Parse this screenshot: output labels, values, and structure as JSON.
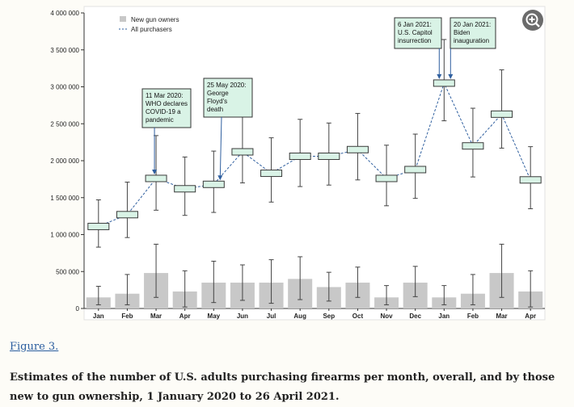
{
  "figure": {
    "link_label": "Figure 3.",
    "caption": "Estimates of the number of U.S. adults purchasing firearms per month, overall, and by those new to gun ownership, 1 January 2020 to 26 April 2021."
  },
  "zoom_icon": "magnify-plus-icon",
  "colors": {
    "bar": "#c8c8c8",
    "box_fill": "#d9f3e6",
    "box_stroke": "#3a3a3a",
    "line": "#2f5f9f",
    "annotation_fill": "#d9f3e6"
  },
  "chart_data": {
    "type": "bar",
    "categories": [
      "Jan",
      "Feb",
      "Mar",
      "Apr",
      "May",
      "Jun",
      "Jul",
      "Aug",
      "Sep",
      "Oct",
      "Nov",
      "Dec",
      "Jan",
      "Feb",
      "Mar",
      "Apr"
    ],
    "ylim": [
      0,
      4000000
    ],
    "yticks": [
      0,
      500000,
      1000000,
      1500000,
      2000000,
      2500000,
      3000000,
      3500000,
      4000000
    ],
    "ytick_labels": [
      "0",
      "500 000",
      "1 000 000",
      "1 500 000",
      "2 000 000",
      "2 500 000",
      "3 000 000",
      "3 500 000",
      "4 000 000"
    ],
    "legend": [
      "New gun owners",
      "All purchasers"
    ],
    "legend_position": "top-left",
    "grid": false,
    "series": [
      {
        "name": "New gun owners",
        "type": "bar",
        "values": [
          150000,
          200000,
          480000,
          230000,
          350000,
          350000,
          350000,
          400000,
          290000,
          350000,
          150000,
          350000,
          150000,
          200000,
          480000,
          230000
        ],
        "lower": [
          50000,
          50000,
          150000,
          20000,
          80000,
          110000,
          70000,
          120000,
          100000,
          150000,
          50000,
          160000,
          50000,
          50000,
          150000,
          20000
        ],
        "upper": [
          300000,
          460000,
          870000,
          510000,
          640000,
          590000,
          660000,
          700000,
          490000,
          560000,
          310000,
          570000,
          310000,
          460000,
          870000,
          510000
        ]
      },
      {
        "name": "All purchasers",
        "type": "line",
        "values": [
          1110000,
          1270000,
          1760000,
          1620000,
          1680000,
          2120000,
          1830000,
          2060000,
          2060000,
          2150000,
          1760000,
          1880000,
          3050000,
          2200000,
          2630000,
          1740000
        ],
        "lower": [
          830000,
          960000,
          1330000,
          1260000,
          1300000,
          1700000,
          1440000,
          1650000,
          1670000,
          1740000,
          1390000,
          1490000,
          2540000,
          1780000,
          2170000,
          1350000
        ],
        "upper": [
          1470000,
          1710000,
          2340000,
          2050000,
          2130000,
          2620000,
          2310000,
          2560000,
          2510000,
          2640000,
          2210000,
          2360000,
          3640000,
          2710000,
          3230000,
          2190000
        ]
      }
    ],
    "annotations": [
      {
        "index": 2,
        "lines": [
          "11 Mar 2020:",
          "WHO declares",
          "COVID-19 a",
          "pandemic"
        ]
      },
      {
        "index": 4,
        "lines": [
          "25 May 2020:",
          "George",
          "Floyd's",
          "death"
        ]
      },
      {
        "index": 12,
        "lines": [
          "6 Jan 2021:",
          "U.S. Capitol",
          "insurrection"
        ]
      },
      {
        "index": 12,
        "lines": [
          "20 Jan 2021:",
          "Biden",
          "inauguration"
        ]
      }
    ]
  }
}
